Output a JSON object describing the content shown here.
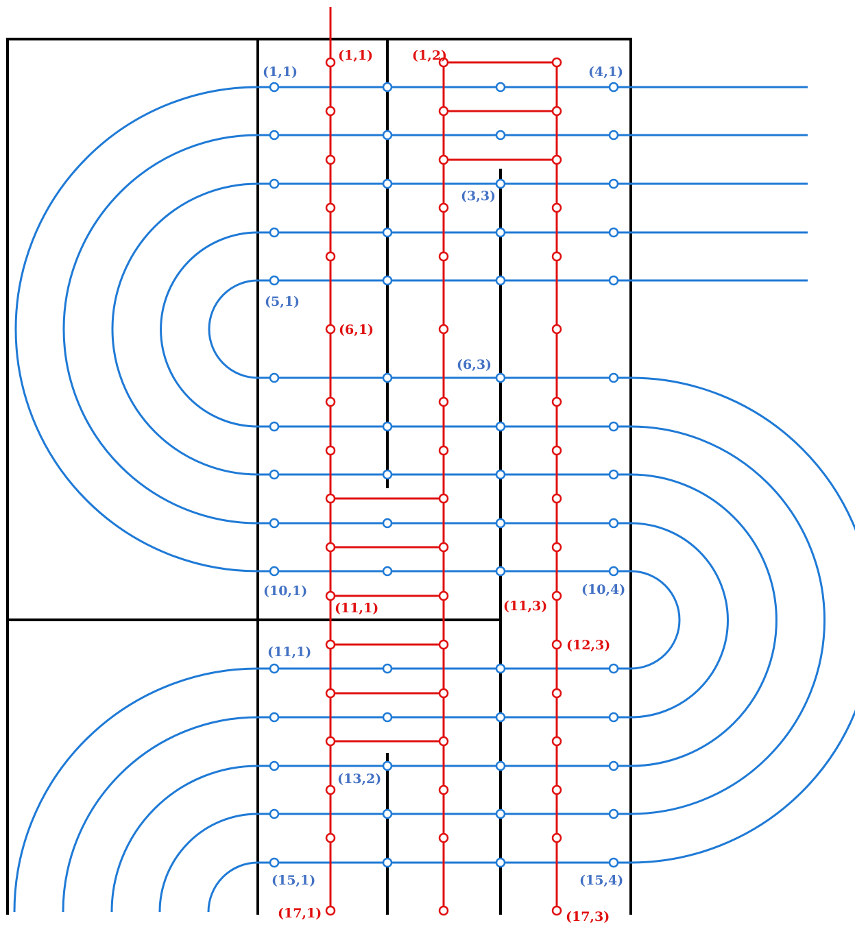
{
  "colors": {
    "blue_track": "#1f7ad6",
    "blue_label": "#4472c4",
    "red_track": "#e01010",
    "wall": "#000000",
    "background": "#ffffff"
  },
  "blue_labels": {
    "b_1_1": "(1,1)",
    "b_4_1": "(4,1)",
    "b_3_3": "(3,3)",
    "b_5_1": "(5,1)",
    "b_6_3": "(6,3)",
    "b_10_1": "(10,1)",
    "b_10_4": "(10,4)",
    "b_11_1": "(11,1)",
    "b_13_2": "(13,2)",
    "b_15_1": "(15,1)",
    "b_15_4": "(15,4)"
  },
  "red_labels": {
    "r_1_1": "(1,1)",
    "r_1_2": "(1,2)",
    "r_6_1": "(6,1)",
    "r_11_1": "(11,1)",
    "r_11_3": "(11,3)",
    "r_12_3": "(12,3)",
    "r_17_1": "(17,1)",
    "r_17_3": "(17,3)"
  }
}
